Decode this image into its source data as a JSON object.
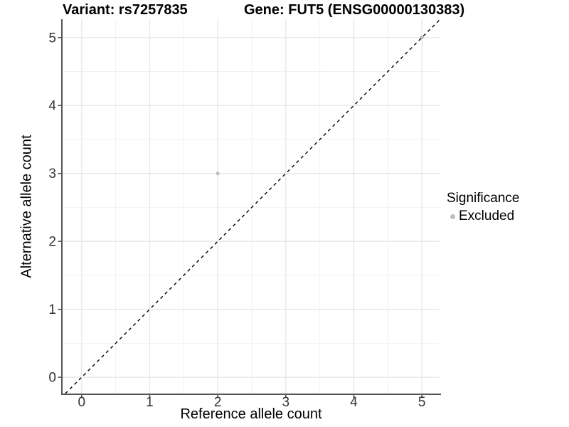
{
  "chart_data": {
    "type": "scatter",
    "title_left": "Variant: rs7257835",
    "title_right": "Gene: FUT5 (ENSG00000130383)",
    "xlabel": "Reference allele count",
    "ylabel": "Alternative allele count",
    "xlim": [
      -0.28,
      5.26
    ],
    "ylim": [
      -0.24,
      5.27
    ],
    "xticks": [
      0,
      1,
      2,
      3,
      4,
      5
    ],
    "yticks": [
      0,
      1,
      2,
      3,
      4,
      5
    ],
    "minor_ticks_x": [
      0.5,
      1.5,
      2.5,
      3.5,
      4.5
    ],
    "minor_ticks_y": [
      0.5,
      1.5,
      2.5,
      3.5,
      4.5
    ],
    "grid": "on",
    "legend_position": "right",
    "identity_line": {
      "style": "dashed",
      "color": "#000000",
      "from": -0.24,
      "to": 5.27
    },
    "series": [
      {
        "name": "Excluded",
        "color": "#bebebe",
        "point_radius": 2.6,
        "points": [
          [
            2,
            3
          ],
          [
            5,
            5
          ]
        ]
      }
    ],
    "legend": {
      "title": "Significance",
      "items": [
        {
          "label": "Excluded",
          "color": "#bebebe"
        }
      ]
    }
  },
  "style": {
    "grid_major": "#e6e6e6",
    "grid_minor": "#f2f2f2",
    "axis_color": "#555555",
    "tick_label_color": "#333333",
    "tick_label_size": 19
  }
}
